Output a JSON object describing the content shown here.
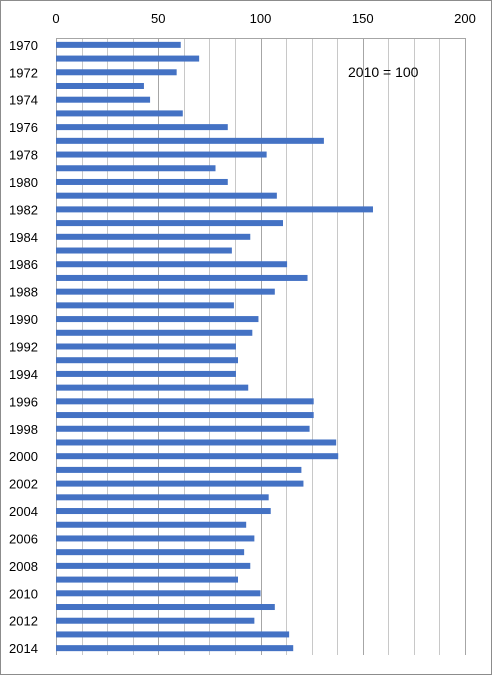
{
  "chart_data": {
    "type": "bar",
    "orientation": "horizontal",
    "categories": [
      "1970",
      "1971",
      "1972",
      "1973",
      "1974",
      "1975",
      "1976",
      "1977",
      "1978",
      "1979",
      "1980",
      "1981",
      "1982",
      "1983",
      "1984",
      "1985",
      "1986",
      "1987",
      "1988",
      "1989",
      "1990",
      "1991",
      "1992",
      "1993",
      "1994",
      "1995",
      "1996",
      "1997",
      "1998",
      "1999",
      "2000",
      "2001",
      "2002",
      "2003",
      "2004",
      "2005",
      "2006",
      "2007",
      "2008",
      "2009",
      "2010",
      "2011",
      "2012",
      "2013",
      "2014"
    ],
    "category_labels_shown": [
      "1970",
      "1972",
      "1974",
      "1976",
      "1978",
      "1980",
      "1982",
      "1984",
      "1986",
      "1988",
      "1990",
      "1992",
      "1994",
      "1996",
      "1998",
      "2000",
      "2002",
      "2004",
      "2006",
      "2008",
      "2010",
      "2012",
      "2014"
    ],
    "values": [
      61,
      70,
      59,
      43,
      46,
      62,
      84,
      131,
      103,
      78,
      84,
      108,
      155,
      111,
      95,
      86,
      113,
      123,
      107,
      87,
      99,
      96,
      88,
      89,
      88,
      94,
      126,
      126,
      124,
      137,
      138,
      120,
      121,
      104,
      105,
      93,
      97,
      92,
      95,
      89,
      100,
      107,
      97,
      114,
      116
    ],
    "annotation": "2010 = 100",
    "xlim": [
      0,
      200
    ],
    "xticks": [
      0,
      50,
      100,
      150,
      200
    ],
    "minor_gridline_step": 12.5,
    "xaxis_position": "top",
    "grid": true,
    "bar_color": "#4472C4"
  }
}
